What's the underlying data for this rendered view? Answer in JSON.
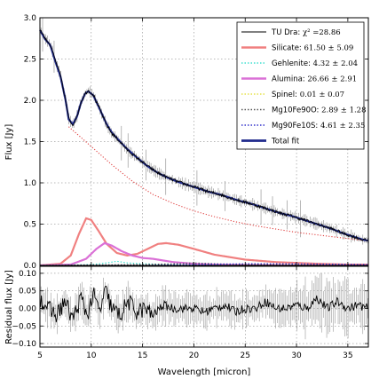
{
  "chart_data": [
    {
      "type": "line",
      "panel": "top",
      "xlabel": "",
      "ylabel": "Flux [Jy]",
      "xlim": [
        5,
        37
      ],
      "ylim": [
        0,
        3.0
      ],
      "xticks": [
        5,
        10,
        15,
        20,
        25,
        30,
        35
      ],
      "yticks": [
        0.0,
        0.5,
        1.0,
        1.5,
        2.0,
        2.5,
        3.0
      ],
      "ytick_labels": [
        "0.0",
        "0.5",
        "1.0",
        "1.5",
        "2.0",
        "2.5",
        "3.0"
      ],
      "grid": true,
      "legend_position": "top-right",
      "legend": [
        {
          "label": "TU Dra: ",
          "value": "χ² =28.86",
          "style": "black-thin-line"
        },
        {
          "label": "Silicate: ",
          "value": "61.50 ± 5.09",
          "style": "salmon-thick-line"
        },
        {
          "label": "Gehlenite: ",
          "value": "4.32 ± 2.04",
          "style": "cyan-dotted"
        },
        {
          "label": "Alumina: ",
          "value": "26.66 ± 2.91",
          "style": "violet-thick-line"
        },
        {
          "label": "Spinel: ",
          "value": "0.01 ± 0.07",
          "style": "yellow-dotted"
        },
        {
          "label": "Mg10Fe90O: ",
          "value": "2.89 ± 1.28",
          "style": "grey-dotted"
        },
        {
          "label": "Mg90Fe10S: ",
          "value": "4.61 ± 2.35",
          "style": "blue-dotted"
        },
        {
          "label": "Total fit",
          "value": "",
          "style": "navy-thick-line"
        }
      ],
      "series": [
        {
          "name": "TU Dra",
          "x": [
            5.0,
            5.5,
            6.0,
            6.5,
            7.0,
            7.5,
            7.8,
            8.2,
            8.6,
            9.0,
            9.4,
            9.7,
            10.2,
            10.8,
            11.5,
            12.0,
            12.8,
            13.5,
            14.5,
            15.5,
            16.5,
            17.5,
            18.5,
            19.5,
            20.5,
            21.5,
            22.5,
            23.5,
            24.5,
            25.5,
            26.5,
            27.5,
            28.5,
            29.5,
            30.5,
            31.5,
            32.5,
            33.5,
            34.5,
            35.5,
            36.5,
            37.0
          ],
          "y": [
            2.87,
            2.75,
            2.68,
            2.48,
            2.3,
            2.0,
            1.78,
            1.7,
            1.8,
            1.98,
            2.08,
            2.12,
            2.07,
            1.9,
            1.7,
            1.6,
            1.5,
            1.4,
            1.3,
            1.2,
            1.12,
            1.06,
            1.01,
            0.97,
            0.93,
            0.89,
            0.86,
            0.82,
            0.78,
            0.75,
            0.71,
            0.67,
            0.63,
            0.6,
            0.56,
            0.52,
            0.48,
            0.44,
            0.39,
            0.35,
            0.31,
            0.3
          ]
        },
        {
          "name": "Total fit",
          "x": [
            5.0,
            5.5,
            6.0,
            6.5,
            7.0,
            7.5,
            7.8,
            8.2,
            8.6,
            9.0,
            9.4,
            9.7,
            10.2,
            10.8,
            11.5,
            12.0,
            12.8,
            13.5,
            14.5,
            15.5,
            16.5,
            17.5,
            18.5,
            19.5,
            20.5,
            21.5,
            22.5,
            23.5,
            24.5,
            25.5,
            26.5,
            27.5,
            28.5,
            29.5,
            30.5,
            31.5,
            32.5,
            33.5,
            34.5,
            35.5,
            36.5,
            37.0
          ],
          "y": [
            2.85,
            2.74,
            2.67,
            2.47,
            2.29,
            2.0,
            1.77,
            1.71,
            1.8,
            1.97,
            2.08,
            2.11,
            2.06,
            1.9,
            1.71,
            1.61,
            1.5,
            1.41,
            1.3,
            1.2,
            1.12,
            1.06,
            1.01,
            0.97,
            0.93,
            0.89,
            0.86,
            0.82,
            0.78,
            0.75,
            0.71,
            0.67,
            0.63,
            0.6,
            0.56,
            0.52,
            0.48,
            0.44,
            0.39,
            0.35,
            0.31,
            0.3
          ]
        },
        {
          "name": "Silicate",
          "x": [
            5.0,
            7.0,
            8.0,
            8.8,
            9.5,
            10.0,
            10.7,
            11.5,
            12.5,
            13.5,
            14.5,
            15.5,
            16.5,
            17.3,
            18.5,
            20.0,
            22.0,
            25.0,
            28.0,
            32.0,
            35.0,
            37.0
          ],
          "y": [
            0.0,
            0.02,
            0.12,
            0.38,
            0.57,
            0.55,
            0.42,
            0.26,
            0.15,
            0.12,
            0.14,
            0.2,
            0.26,
            0.27,
            0.25,
            0.2,
            0.13,
            0.07,
            0.04,
            0.02,
            0.01,
            0.01
          ]
        },
        {
          "name": "Alumina",
          "x": [
            5.0,
            8.0,
            9.5,
            10.5,
            11.3,
            12.0,
            13.0,
            14.0,
            15.0,
            16.0,
            17.0,
            18.0,
            19.0,
            20.0,
            22.0,
            25.0,
            30.0,
            37.0
          ],
          "y": [
            0.0,
            0.01,
            0.08,
            0.2,
            0.27,
            0.24,
            0.17,
            0.12,
            0.09,
            0.08,
            0.06,
            0.04,
            0.03,
            0.02,
            0.01,
            0.005,
            0.0,
            0.0
          ]
        },
        {
          "name": "Gehlenite",
          "x": [
            5.0,
            10.0,
            11.5,
            12.5,
            13.5,
            15.0,
            18.0,
            25.0,
            37.0
          ],
          "y": [
            0.0,
            0.01,
            0.03,
            0.05,
            0.03,
            0.02,
            0.01,
            0.0,
            0.0
          ]
        },
        {
          "name": "Mg10Fe90O",
          "x": [
            5.0,
            15.0,
            18.0,
            20.0,
            22.0,
            25.0,
            37.0
          ],
          "y": [
            0.0,
            0.01,
            0.02,
            0.03,
            0.02,
            0.01,
            0.0
          ]
        },
        {
          "name": "Mg90Fe10S",
          "x": [
            5.0,
            15.0,
            20.0,
            25.0,
            30.0,
            37.0
          ],
          "y": [
            0.0,
            0.0,
            0.01,
            0.02,
            0.02,
            0.01
          ]
        },
        {
          "name": "Spinel",
          "x": [
            5.0,
            37.0
          ],
          "y": [
            0.0,
            0.0
          ]
        },
        {
          "name": "Continuum",
          "x": [
            7.8,
            9.0,
            10.0,
            11.0,
            12.0,
            13.0,
            14.0,
            15.0,
            16.0,
            18.0,
            20.0,
            22.0,
            24.0,
            26.0,
            28.0,
            30.0,
            32.0,
            34.0,
            36.0,
            37.0
          ],
          "y": [
            1.68,
            1.55,
            1.44,
            1.33,
            1.22,
            1.12,
            1.02,
            0.94,
            0.86,
            0.75,
            0.66,
            0.59,
            0.53,
            0.48,
            0.44,
            0.4,
            0.37,
            0.34,
            0.31,
            0.3
          ]
        }
      ]
    },
    {
      "type": "line",
      "panel": "bottom",
      "xlabel": "Wavelength [micron]",
      "ylabel": "Residual flux [Jy]",
      "xlim": [
        5,
        37
      ],
      "ylim": [
        -0.11,
        0.12
      ],
      "xticks": [
        5,
        10,
        15,
        20,
        25,
        30,
        35
      ],
      "yticks": [
        0.1,
        0.05,
        0.0,
        -0.05,
        -0.1
      ],
      "ytick_labels": [
        "0.10",
        "0.05",
        "0.00",
        "−0.05",
        "−0.10"
      ],
      "grid": true,
      "series": [
        {
          "name": "Residual",
          "x": [
            5.0,
            5.8,
            6.6,
            7.4,
            8.2,
            9.0,
            9.6,
            10.2,
            10.8,
            11.4,
            12.0,
            12.8,
            13.6,
            14.4,
            15.2,
            16.0,
            17.0,
            18.0,
            19.0,
            20.0,
            21.0,
            22.0,
            23.0,
            24.0,
            25.0,
            26.0,
            27.0,
            28.0,
            29.0,
            30.0,
            31.0,
            32.0,
            33.0,
            34.0,
            35.0,
            36.0,
            37.0
          ],
          "y": [
            0.03,
            0.0,
            -0.02,
            0.02,
            -0.03,
            0.03,
            -0.02,
            0.04,
            -0.01,
            0.05,
            0.0,
            -0.02,
            0.02,
            -0.01,
            0.0,
            -0.02,
            0.01,
            0.0,
            0.0,
            0.0,
            -0.01,
            0.0,
            0.01,
            -0.01,
            0.0,
            0.0,
            0.02,
            0.0,
            0.0,
            0.01,
            0.0,
            0.03,
            0.0,
            0.02,
            0.0,
            0.01,
            0.0
          ]
        }
      ]
    }
  ]
}
